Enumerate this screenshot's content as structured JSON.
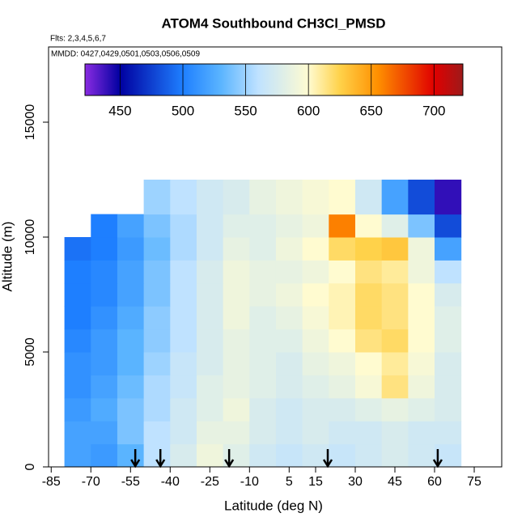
{
  "chart_data": {
    "type": "heatmap",
    "title": "ATOM4 Southbound CH3Cl_PMSD",
    "subtitle": "Flts: 2,3,4,5,6,7",
    "annotation": "MMDD: 0427,0429,0501,0503,0506,0509",
    "xlabel": "Latitude (deg N)",
    "ylabel": "Altitude (m)",
    "xlim": [
      -86,
      85.4
    ],
    "ylim": [
      0,
      18275
    ],
    "xticks": [
      -85,
      -70,
      -55,
      -40,
      -25,
      -10,
      5,
      15,
      30,
      45,
      60,
      75
    ],
    "yticks": [
      0,
      5000,
      10000,
      15000
    ],
    "xbins": [
      -80,
      -70,
      -60,
      -50,
      -40,
      -30,
      -20,
      -10,
      0,
      10,
      20,
      30,
      40,
      50,
      60,
      70
    ],
    "ybins": [
      0,
      1000,
      2000,
      3000,
      4000,
      5000,
      6000,
      7000,
      8000,
      9000,
      10000,
      11000,
      12500
    ],
    "values": [
      [
        520,
        515,
        530,
        560,
        575,
        590,
        580,
        570,
        565,
        570,
        565,
        570,
        575,
        570,
        565
      ],
      [
        520,
        520,
        540,
        560,
        570,
        585,
        585,
        575,
        570,
        575,
        570,
        570,
        575,
        570,
        570
      ],
      [
        515,
        525,
        540,
        555,
        570,
        580,
        590,
        575,
        570,
        575,
        575,
        580,
        585,
        580,
        575
      ],
      [
        510,
        520,
        535,
        555,
        565,
        580,
        585,
        580,
        575,
        580,
        585,
        595,
        615,
        590,
        575
      ],
      [
        510,
        515,
        530,
        550,
        565,
        575,
        585,
        580,
        575,
        585,
        590,
        600,
        610,
        595,
        575
      ],
      [
        505,
        515,
        530,
        545,
        560,
        575,
        585,
        580,
        580,
        590,
        600,
        615,
        620,
        600,
        580
      ],
      [
        500,
        510,
        525,
        545,
        560,
        575,
        590,
        580,
        585,
        595,
        605,
        620,
        615,
        600,
        580
      ],
      [
        500,
        505,
        520,
        540,
        560,
        575,
        590,
        585,
        590,
        600,
        605,
        620,
        615,
        600,
        575
      ],
      [
        500,
        505,
        520,
        540,
        560,
        575,
        590,
        585,
        585,
        590,
        600,
        615,
        610,
        590,
        560
      ],
      [
        495,
        500,
        515,
        535,
        555,
        570,
        585,
        580,
        590,
        600,
        620,
        625,
        630,
        590,
        520
      ],
      [
        null,
        500,
        520,
        540,
        555,
        570,
        580,
        580,
        585,
        590,
        660,
        600,
        580,
        540,
        480
      ],
      [
        null,
        null,
        null,
        550,
        560,
        570,
        575,
        585,
        590,
        595,
        600,
        570,
        520,
        480,
        440
      ]
    ],
    "colorlim": [
      422,
      723
    ],
    "colorticks": [
      450,
      500,
      550,
      600,
      650,
      700
    ],
    "colorscale": [
      {
        "value": 422,
        "color": "#8a2be2"
      },
      {
        "value": 450,
        "color": "#0000a0"
      },
      {
        "value": 500,
        "color": "#1e7fff"
      },
      {
        "value": 530,
        "color": "#5ab4ff"
      },
      {
        "value": 560,
        "color": "#bfe2ff"
      },
      {
        "value": 600,
        "color": "#fffbd0"
      },
      {
        "value": 625,
        "color": "#ffd24a"
      },
      {
        "value": 655,
        "color": "#ff9000"
      },
      {
        "value": 700,
        "color": "#e00000"
      },
      {
        "value": 723,
        "color": "#9e1a1a"
      }
    ],
    "arrows": [
      -53.2,
      -43.7,
      -17.7,
      19.6,
      61.2
    ]
  }
}
